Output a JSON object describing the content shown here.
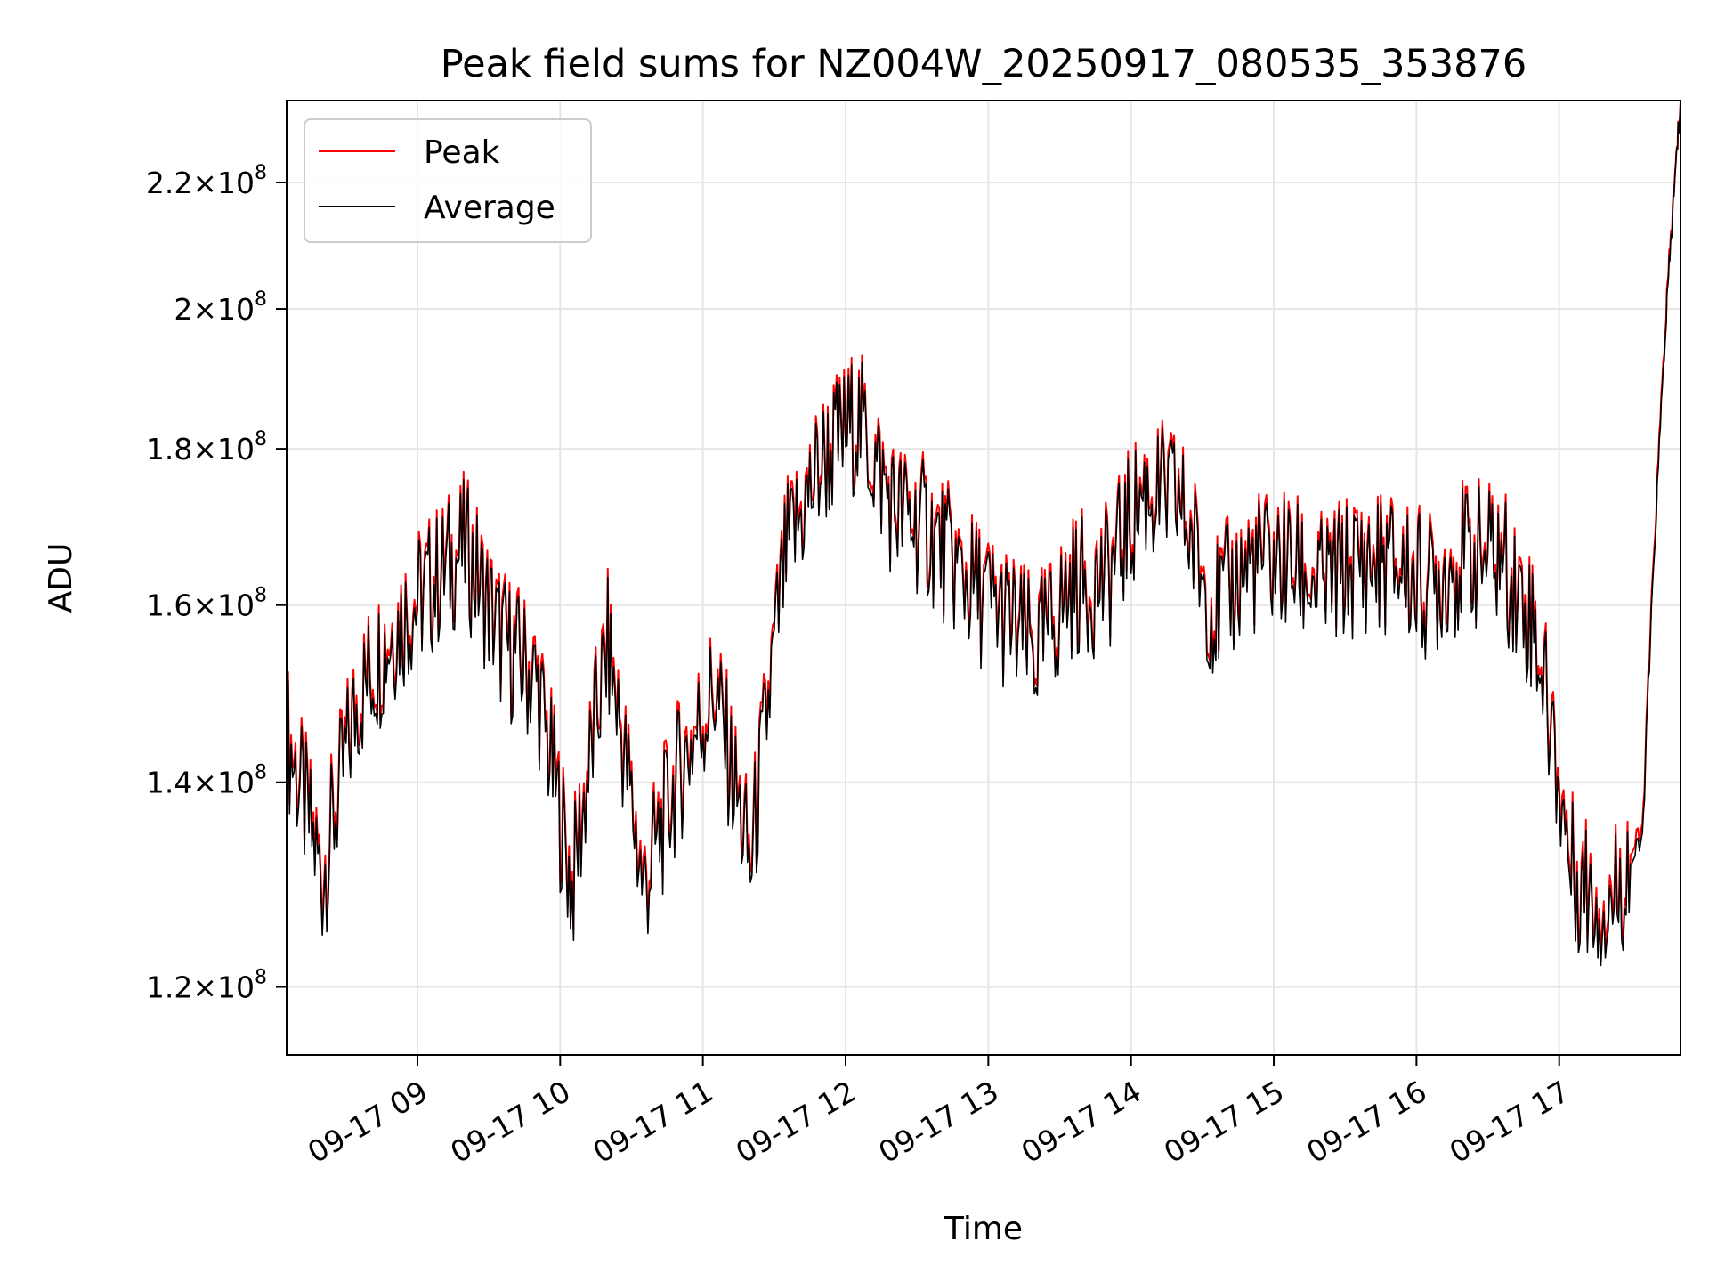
{
  "chart_data": {
    "type": "line",
    "title": "Peak field sums for NZ004W_20250917_080535_353876",
    "xlabel": "Time",
    "ylabel": "ADU",
    "y_scale": "log",
    "grid": true,
    "legend_position": "top-left",
    "x_ticks": [
      "09-17 09",
      "09-17 10",
      "09-17 11",
      "09-17 12",
      "09-17 13",
      "09-17 14",
      "09-17 15",
      "09-17 16",
      "09-17 17"
    ],
    "y_ticks": [
      {
        "value": 120000000,
        "mantissa": "1.2",
        "exponent": "8"
      },
      {
        "value": 140000000,
        "mantissa": "1.4",
        "exponent": "8"
      },
      {
        "value": 160000000,
        "mantissa": "1.6",
        "exponent": "8"
      },
      {
        "value": 180000000,
        "mantissa": "1.8",
        "exponent": "8"
      },
      {
        "value": 200000000,
        "mantissa": "2",
        "exponent": "8"
      },
      {
        "value": 220000000,
        "mantissa": "2.2",
        "exponent": "8"
      }
    ],
    "x_range": [
      "2025-09-17 08:05",
      "2025-09-17 17:51"
    ],
    "y_range": [
      114000000,
      234000000
    ],
    "series": [
      {
        "name": "Peak",
        "color": "#ff0000",
        "x": [
          "08:05",
          "08:20",
          "08:35",
          "08:50",
          "09:05",
          "09:20",
          "09:35",
          "09:50",
          "10:05",
          "10:20",
          "10:35",
          "10:50",
          "11:05",
          "11:20",
          "11:35",
          "11:50",
          "12:05",
          "12:20",
          "12:35",
          "12:50",
          "13:05",
          "13:20",
          "13:35",
          "13:50",
          "14:05",
          "14:20",
          "14:35",
          "14:50",
          "15:05",
          "15:20",
          "15:35",
          "15:50",
          "16:05",
          "16:20",
          "16:35",
          "16:50",
          "17:05",
          "17:20",
          "17:35",
          "17:45",
          "17:51"
        ],
        "y": [
          146000000,
          131000000,
          150000000,
          158000000,
          163000000,
          168000000,
          157000000,
          152000000,
          130000000,
          156000000,
          130000000,
          142000000,
          151000000,
          132000000,
          167000000,
          179000000,
          185000000,
          173000000,
          170000000,
          164000000,
          160000000,
          155000000,
          163000000,
          164000000,
          175000000,
          174000000,
          160000000,
          166000000,
          166000000,
          163000000,
          166000000,
          166000000,
          163000000,
          167000000,
          167000000,
          158000000,
          132000000,
          128000000,
          135000000,
          200000000,
          234000000
        ]
      },
      {
        "name": "Average",
        "color": "#000000",
        "x": [
          "08:05",
          "08:20",
          "08:35",
          "08:50",
          "09:05",
          "09:20",
          "09:35",
          "09:50",
          "10:05",
          "10:20",
          "10:35",
          "10:50",
          "11:05",
          "11:20",
          "11:35",
          "11:50",
          "12:05",
          "12:20",
          "12:35",
          "12:50",
          "13:05",
          "13:20",
          "13:35",
          "13:50",
          "14:05",
          "14:20",
          "14:35",
          "14:50",
          "15:05",
          "15:20",
          "15:35",
          "15:50",
          "16:05",
          "16:20",
          "16:35",
          "16:50",
          "17:05",
          "17:20",
          "17:35",
          "17:45",
          "17:51"
        ],
        "y": [
          145000000,
          130000000,
          149000000,
          157000000,
          162000000,
          167000000,
          156000000,
          151000000,
          129000000,
          155000000,
          129000000,
          141000000,
          150000000,
          131000000,
          166000000,
          178000000,
          184000000,
          172000000,
          169000000,
          163000000,
          159000000,
          154000000,
          162000000,
          163000000,
          174000000,
          173000000,
          159000000,
          165000000,
          165000000,
          162000000,
          165000000,
          165000000,
          162000000,
          166000000,
          166000000,
          157000000,
          131000000,
          127000000,
          134000000,
          199000000,
          234000000
        ]
      }
    ]
  }
}
